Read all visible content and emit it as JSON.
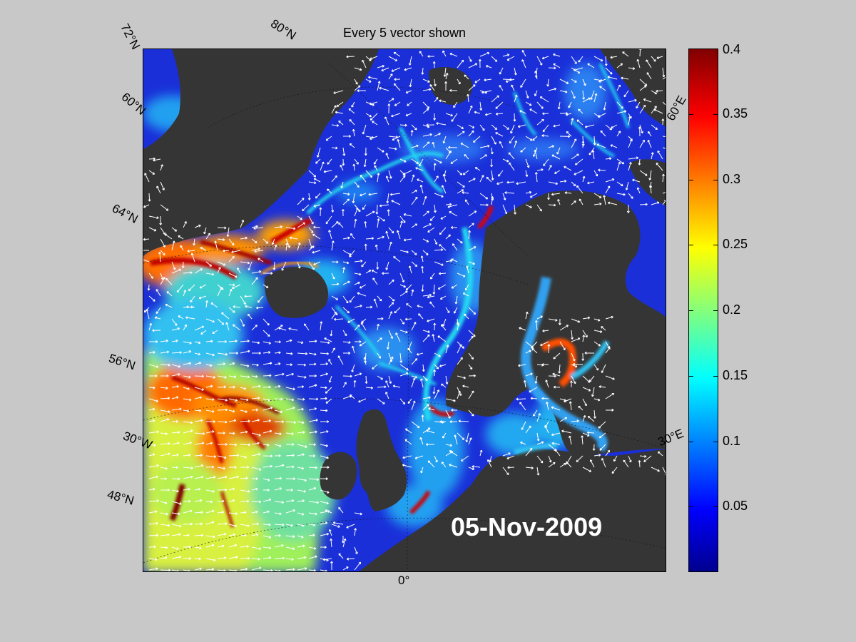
{
  "title": "Every 5 vector shown",
  "date_text": "05-Nov-2009",
  "grid_labels": {
    "lat_72": "72°N",
    "lat_68": "80°N",
    "lat_60": "60°N",
    "lat_64": "64°N",
    "lat_56": "56°N",
    "lon_30w": "30°W",
    "lat_48": "48°N",
    "lon_0": "0°",
    "lon_30e": "30°E",
    "lon_60e": "60°E"
  },
  "colorbar": {
    "min": 0,
    "max": 0.4,
    "tick_labels": [
      "0.4",
      "0.35",
      "0.3",
      "0.25",
      "0.2",
      "0.15",
      "0.1",
      "0.05"
    ],
    "tick_values": [
      0.4,
      0.35,
      0.3,
      0.25,
      0.2,
      0.15,
      0.1,
      0.05
    ],
    "colormap": "jet"
  },
  "colors": {
    "background": "#c8c8c8",
    "land": "#353535",
    "ocean_base": "#1a2fd8",
    "vectors": "#ffffff"
  }
}
